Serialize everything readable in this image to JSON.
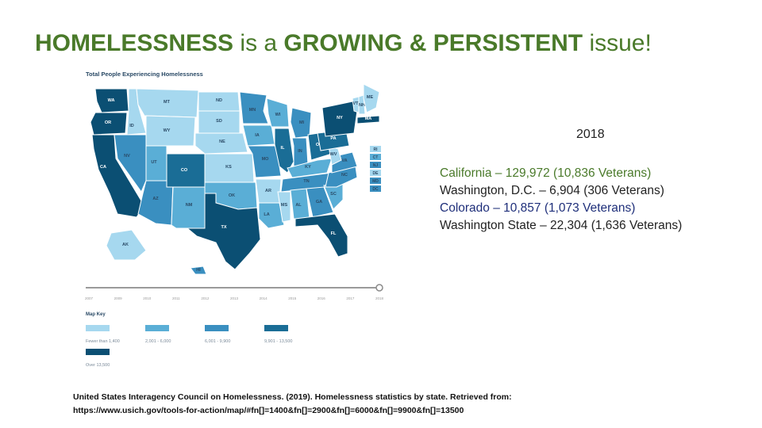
{
  "slide": {
    "title_part1": "HOMELESSNESS",
    "title_part2": " is a ",
    "title_part3": "GROWING & PERSISTENT",
    "title_part4": " issue!",
    "title_color": "#4a7a2a"
  },
  "map": {
    "title": "Total People Experiencing Homelessness",
    "timeline_ticks": [
      "2007",
      "2009",
      "2010",
      "2011",
      "2012",
      "2013",
      "2014",
      "2015",
      "2016",
      "2017",
      "2018"
    ],
    "timeline_selected": "2018",
    "legend": {
      "title": "Map Key",
      "items": [
        {
          "label": "Fewer than 1,400",
          "color": "#a6d8ef"
        },
        {
          "label": "2,001 - 6,000",
          "color": "#5aaed6"
        },
        {
          "label": "6,001 - 9,900",
          "color": "#3a8fc0"
        },
        {
          "label": "9,901 - 13,500",
          "color": "#1a6d96"
        },
        {
          "label": "Over 13,500",
          "color": "#0b4f73"
        }
      ]
    },
    "states": [
      {
        "abbr": "WA",
        "level": 4
      },
      {
        "abbr": "OR",
        "level": 4
      },
      {
        "abbr": "CA",
        "level": 4
      },
      {
        "abbr": "ID",
        "level": 0
      },
      {
        "abbr": "NV",
        "level": 2
      },
      {
        "abbr": "AZ",
        "level": 2
      },
      {
        "abbr": "MT",
        "level": 0
      },
      {
        "abbr": "WY",
        "level": 0
      },
      {
        "abbr": "UT",
        "level": 1
      },
      {
        "abbr": "CO",
        "level": 3
      },
      {
        "abbr": "NM",
        "level": 1
      },
      {
        "abbr": "ND",
        "level": 0
      },
      {
        "abbr": "SD",
        "level": 0
      },
      {
        "abbr": "NE",
        "level": 0
      },
      {
        "abbr": "KS",
        "level": 0
      },
      {
        "abbr": "OK",
        "level": 1
      },
      {
        "abbr": "TX",
        "level": 4
      },
      {
        "abbr": "MN",
        "level": 2
      },
      {
        "abbr": "IA",
        "level": 1
      },
      {
        "abbr": "MO",
        "level": 2
      },
      {
        "abbr": "AR",
        "level": 0
      },
      {
        "abbr": "LA",
        "level": 1
      },
      {
        "abbr": "WI",
        "level": 1
      },
      {
        "abbr": "IL",
        "level": 3
      },
      {
        "abbr": "MI",
        "level": 2
      },
      {
        "abbr": "IN",
        "level": 2
      },
      {
        "abbr": "OH",
        "level": 3
      },
      {
        "abbr": "KY",
        "level": 1
      },
      {
        "abbr": "TN",
        "level": 2
      },
      {
        "abbr": "MS",
        "level": 0
      },
      {
        "abbr": "AL",
        "level": 1
      },
      {
        "abbr": "GA",
        "level": 2
      },
      {
        "abbr": "FL",
        "level": 4
      },
      {
        "abbr": "SC",
        "level": 1
      },
      {
        "abbr": "NC",
        "level": 2
      },
      {
        "abbr": "VA",
        "level": 2
      },
      {
        "abbr": "WV",
        "level": 0
      },
      {
        "abbr": "PA",
        "level": 3
      },
      {
        "abbr": "NY",
        "level": 4
      },
      {
        "abbr": "VT",
        "level": 0
      },
      {
        "abbr": "NH",
        "level": 0
      },
      {
        "abbr": "ME",
        "level": 0
      },
      {
        "abbr": "MA",
        "level": 4
      },
      {
        "abbr": "RI",
        "level": 0
      },
      {
        "abbr": "CT",
        "level": 1
      },
      {
        "abbr": "NJ",
        "level": 2
      },
      {
        "abbr": "DE",
        "level": 0
      },
      {
        "abbr": "MD",
        "level": 2
      },
      {
        "abbr": "DC",
        "level": 2
      },
      {
        "abbr": "AK",
        "level": 0
      },
      {
        "abbr": "HI",
        "level": 2
      }
    ]
  },
  "stats": {
    "year": "2018",
    "lines": [
      {
        "text": "California – 129,972 (10,836 Veterans)",
        "color": "#4a7a2a"
      },
      {
        "text": "Washington, D.C. – 6,904 (306 Veterans)",
        "color": "#222222"
      },
      {
        "text": "Colorado – 10,857 (1,073 Veterans)",
        "color": "#1f2f7a"
      },
      {
        "text": "Washington State – 22,304 (1,636 Veterans)",
        "color": "#222222"
      }
    ]
  },
  "citation": {
    "line1": "United States Interagency Council on Homelessness. (2019). Homelessness statistics by state.  Retrieved from:",
    "line2": "https://www.usich.gov/tools-for-action/map/#fn[]=1400&fn[]=2900&fn[]=6000&fn[]=9900&fn[]=13500"
  }
}
